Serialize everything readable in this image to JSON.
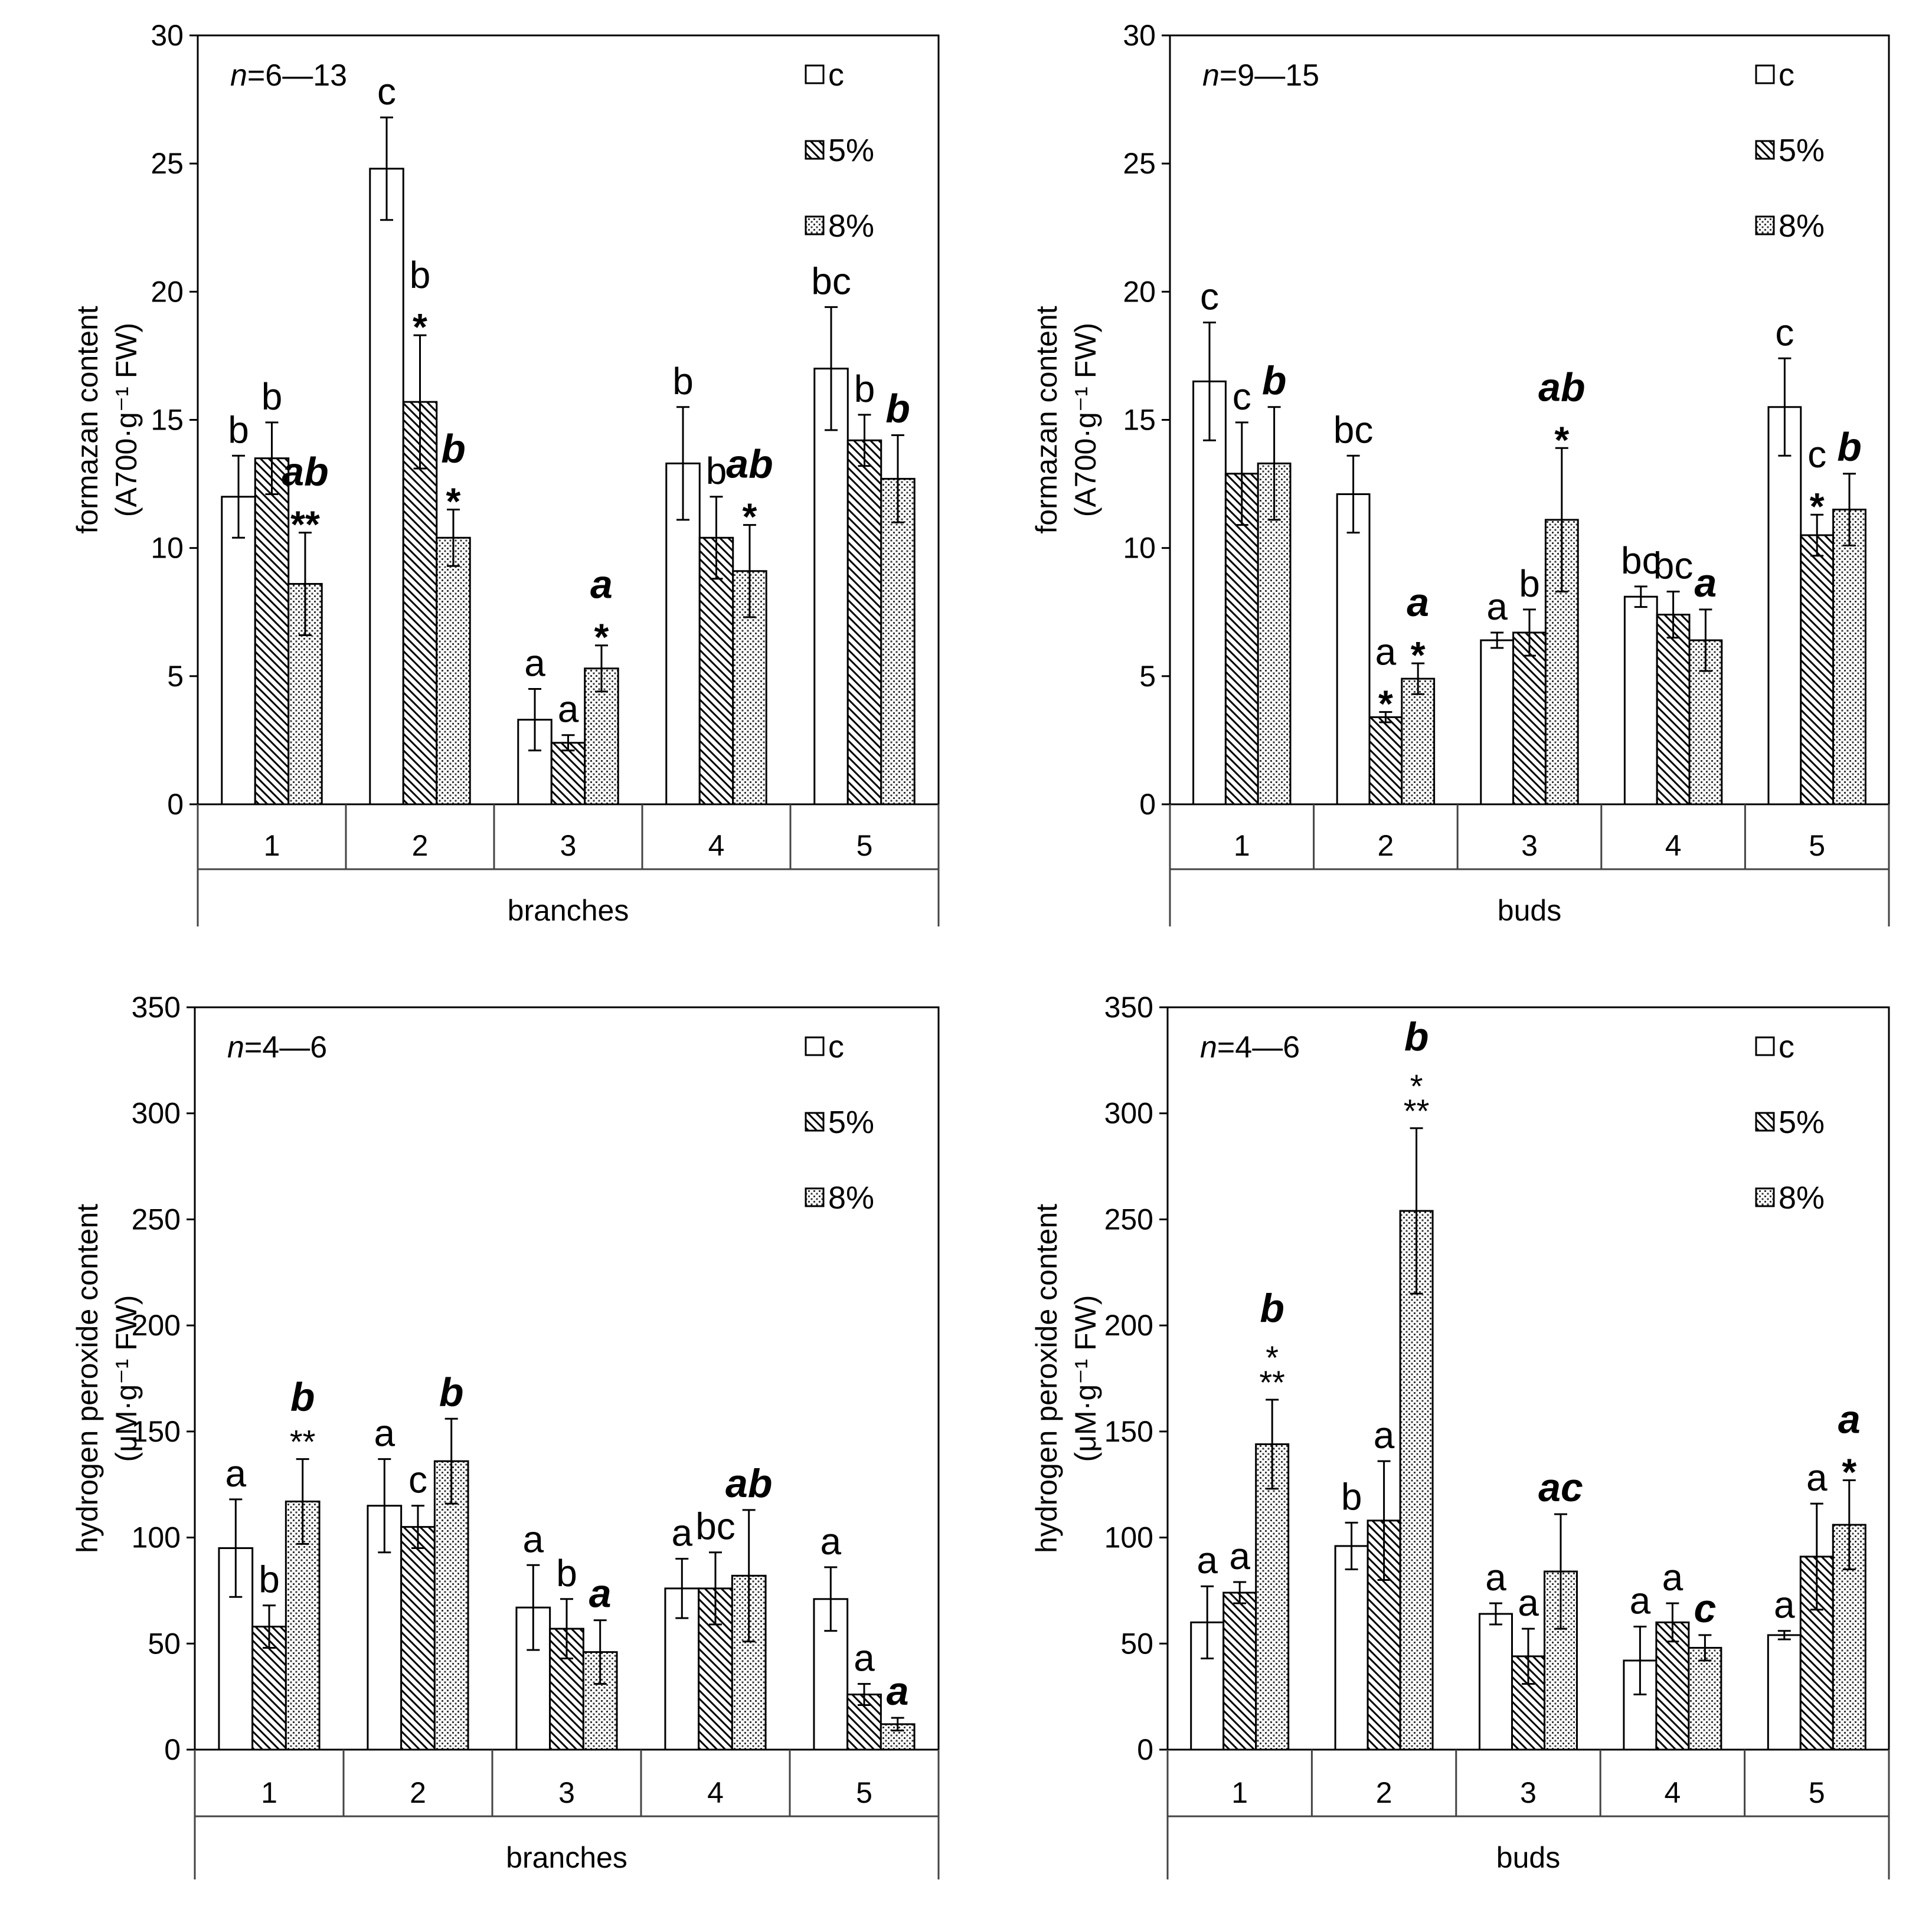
{
  "chart_data": [
    {
      "type": "bar",
      "n_text": "=6—13",
      "n_symbol": "n",
      "ylabel_line1": "formazan content",
      "ylabel_line2": "(A700·g⁻¹ FW)",
      "xlabel": "branches",
      "ylim": [
        0,
        30
      ],
      "yticks": [
        "0",
        "5",
        "10",
        "15",
        "20",
        "25",
        "30"
      ],
      "categories": [
        "1",
        "2",
        "3",
        "4",
        "5"
      ],
      "legend": [
        "c",
        "5%",
        "8%"
      ],
      "series": [
        {
          "name": "c",
          "values": [
            12.0,
            24.8,
            3.3,
            13.3,
            17.0
          ],
          "errors": [
            1.6,
            2.0,
            1.2,
            2.2,
            2.4
          ]
        },
        {
          "name": "5%",
          "values": [
            13.5,
            15.7,
            2.4,
            10.4,
            14.2
          ],
          "errors": [
            1.4,
            2.6,
            0.3,
            1.6,
            1.0
          ]
        },
        {
          "name": "8%",
          "values": [
            8.6,
            10.4,
            5.3,
            9.1,
            12.7
          ],
          "errors": [
            2.0,
            1.1,
            0.9,
            1.8,
            1.7
          ]
        }
      ],
      "letters": [
        [
          "b",
          "b",
          "ab"
        ],
        [
          "c",
          "b",
          "b"
        ],
        [
          "a",
          "a",
          "a"
        ],
        [
          "b",
          "b",
          "ab"
        ],
        [
          "bc",
          "b",
          "b"
        ]
      ],
      "stars": [
        [
          "",
          "",
          "**"
        ],
        [
          "",
          "*",
          "*"
        ],
        [
          "",
          "",
          "*"
        ],
        [
          "",
          "",
          "*"
        ],
        [
          "",
          "",
          ""
        ]
      ]
    },
    {
      "type": "bar",
      "n_text": "=9—15",
      "n_symbol": "n",
      "ylabel_line1": "formazan content",
      "ylabel_line2": "(A700·g⁻¹ FW)",
      "xlabel": "buds",
      "ylim": [
        0,
        30
      ],
      "yticks": [
        "0",
        "5",
        "10",
        "15",
        "20",
        "25",
        "30"
      ],
      "categories": [
        "1",
        "2",
        "3",
        "4",
        "5"
      ],
      "legend": [
        "c",
        "5%",
        "8%"
      ],
      "series": [
        {
          "name": "c",
          "values": [
            16.5,
            12.1,
            6.4,
            8.1,
            15.5
          ],
          "errors": [
            2.3,
            1.5,
            0.3,
            0.4,
            1.9
          ]
        },
        {
          "name": "5%",
          "values": [
            12.9,
            3.4,
            6.7,
            7.4,
            10.5
          ],
          "errors": [
            2.0,
            0.2,
            0.9,
            0.9,
            0.8
          ]
        },
        {
          "name": "8%",
          "values": [
            13.3,
            4.9,
            11.1,
            6.4,
            11.5
          ],
          "errors": [
            2.2,
            0.6,
            2.8,
            1.2,
            1.4
          ]
        }
      ],
      "letters": [
        [
          "c",
          "c",
          "b"
        ],
        [
          "bc",
          "a",
          "a"
        ],
        [
          "a",
          "b",
          "ab"
        ],
        [
          "bc",
          "bc",
          "a"
        ],
        [
          "c",
          "c",
          "b"
        ]
      ],
      "stars": [
        [
          "",
          "",
          ""
        ],
        [
          "",
          "*",
          "*"
        ],
        [
          "",
          "",
          "*"
        ],
        [
          "",
          "",
          ""
        ],
        [
          "",
          "*",
          ""
        ]
      ]
    },
    {
      "type": "bar",
      "n_text": "=4—6",
      "n_symbol": "n",
      "ylabel_line1": "hydrogen peroxide content",
      "ylabel_line2": "(μM·g⁻¹ FW)",
      "xlabel": "branches",
      "ylim": [
        0,
        350
      ],
      "yticks": [
        "0",
        "50",
        "100",
        "150",
        "200",
        "250",
        "300",
        "350"
      ],
      "categories": [
        "1",
        "2",
        "3",
        "4",
        "5"
      ],
      "legend": [
        "c",
        "5%",
        "8%"
      ],
      "series": [
        {
          "name": "c",
          "values": [
            95,
            115,
            67,
            76,
            71
          ],
          "errors": [
            23,
            22,
            20,
            14,
            15
          ]
        },
        {
          "name": "5%",
          "values": [
            58,
            105,
            57,
            76,
            26
          ],
          "errors": [
            10,
            10,
            14,
            17,
            5
          ]
        },
        {
          "name": "8%",
          "values": [
            117,
            136,
            46,
            82,
            12
          ],
          "errors": [
            20,
            20,
            15,
            31,
            3
          ]
        }
      ],
      "letters": [
        [
          "a",
          "b",
          "b"
        ],
        [
          "a",
          "c",
          "b"
        ],
        [
          "a",
          "b",
          "a"
        ],
        [
          "a",
          "bc",
          "ab"
        ],
        [
          "a",
          "a",
          "a"
        ]
      ],
      "stars": [
        [
          "",
          "",
          "**"
        ],
        [
          "",
          "",
          ""
        ],
        [
          "",
          "",
          ""
        ],
        [
          "",
          "",
          ""
        ],
        [
          "",
          "",
          ""
        ]
      ]
    },
    {
      "type": "bar",
      "n_text": "=4—6",
      "n_symbol": "n",
      "ylabel_line1": "hydrogen peroxide content",
      "ylabel_line2": "(μM·g⁻¹ FW)",
      "xlabel": "buds",
      "ylim": [
        0,
        350
      ],
      "yticks": [
        "0",
        "50",
        "100",
        "150",
        "200",
        "250",
        "300",
        "350"
      ],
      "categories": [
        "1",
        "2",
        "3",
        "4",
        "5"
      ],
      "legend": [
        "c",
        "5%",
        "8%"
      ],
      "series": [
        {
          "name": "c",
          "values": [
            60,
            96,
            64,
            42,
            54
          ],
          "errors": [
            17,
            11,
            5,
            16,
            2
          ]
        },
        {
          "name": "5%",
          "values": [
            74,
            108,
            44,
            60,
            91
          ],
          "errors": [
            5,
            28,
            13,
            9,
            25
          ]
        },
        {
          "name": "8%",
          "values": [
            144,
            254,
            84,
            48,
            106
          ],
          "errors": [
            21,
            39,
            27,
            6,
            21
          ]
        }
      ],
      "letters": [
        [
          "a",
          "a",
          "b"
        ],
        [
          "b",
          "a",
          "b"
        ],
        [
          "a",
          "a",
          "ac"
        ],
        [
          "a",
          "a",
          "c"
        ],
        [
          "a",
          "a",
          "a"
        ]
      ],
      "stars": [
        [
          "",
          "",
          "***"
        ],
        [
          "",
          "",
          "***"
        ],
        [
          "",
          "",
          ""
        ],
        [
          "",
          "",
          ""
        ],
        [
          "",
          "",
          "*"
        ]
      ]
    }
  ]
}
